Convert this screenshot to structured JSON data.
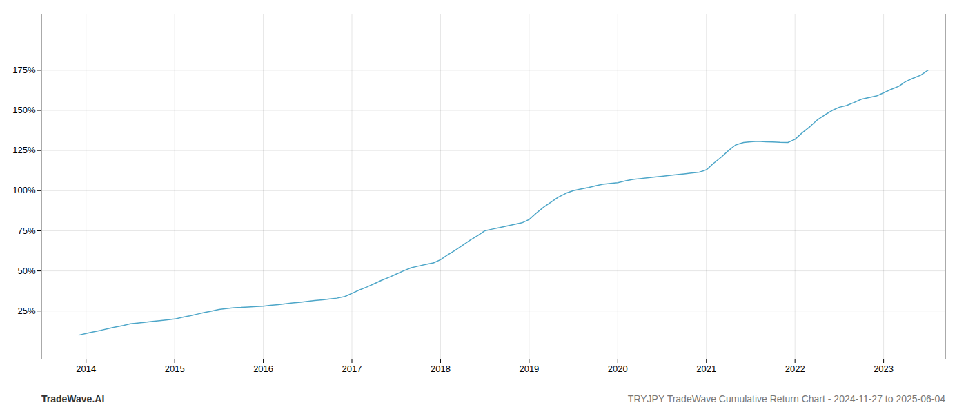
{
  "chart_data": {
    "type": "line",
    "title": "TRYJPY TradeWave Cumulative Return Chart - 2024-11-27 to 2025-06-04",
    "annotations": [
      "TradeWave.AI"
    ],
    "color": "#4da6c8",
    "grid": true,
    "xlim": [
      2013.5,
      2023.7
    ],
    "ylim": [
      -5,
      210
    ],
    "xticks": [
      2014,
      2015,
      2016,
      2017,
      2018,
      2019,
      2020,
      2021,
      2022,
      2023
    ],
    "yticks": [
      {
        "value": 25,
        "label": "25%"
      },
      {
        "value": 50,
        "label": "50%"
      },
      {
        "value": 75,
        "label": "75%"
      },
      {
        "value": 100,
        "label": "100%"
      },
      {
        "value": 125,
        "label": "125%"
      },
      {
        "value": 150,
        "label": "150%"
      },
      {
        "value": 175,
        "label": "175%"
      }
    ],
    "x": [
      2013.92,
      2014.0,
      2014.08,
      2014.17,
      2014.25,
      2014.33,
      2014.42,
      2014.5,
      2014.58,
      2014.67,
      2014.75,
      2014.83,
      2014.92,
      2015.0,
      2015.08,
      2015.17,
      2015.25,
      2015.33,
      2015.42,
      2015.5,
      2015.58,
      2015.67,
      2015.75,
      2015.83,
      2015.92,
      2016.0,
      2016.08,
      2016.17,
      2016.25,
      2016.33,
      2016.42,
      2016.5,
      2016.58,
      2016.67,
      2016.75,
      2016.83,
      2016.92,
      2017.0,
      2017.08,
      2017.17,
      2017.25,
      2017.33,
      2017.42,
      2017.5,
      2017.58,
      2017.67,
      2017.75,
      2017.83,
      2017.92,
      2018.0,
      2018.08,
      2018.17,
      2018.25,
      2018.33,
      2018.42,
      2018.5,
      2018.58,
      2018.67,
      2018.75,
      2018.83,
      2018.92,
      2019.0,
      2019.08,
      2019.17,
      2019.25,
      2019.33,
      2019.42,
      2019.5,
      2019.58,
      2019.67,
      2019.75,
      2019.83,
      2019.92,
      2020.0,
      2020.08,
      2020.17,
      2020.25,
      2020.33,
      2020.42,
      2020.5,
      2020.58,
      2020.67,
      2020.75,
      2020.83,
      2020.92,
      2021.0,
      2021.08,
      2021.17,
      2021.25,
      2021.33,
      2021.42,
      2021.5,
      2021.58,
      2021.67,
      2021.75,
      2021.83,
      2021.92,
      2022.0,
      2022.08,
      2022.17,
      2022.25,
      2022.33,
      2022.42,
      2022.5,
      2022.58,
      2022.67,
      2022.75,
      2022.83,
      2022.92,
      2023.0,
      2023.08,
      2023.17,
      2023.25,
      2023.33,
      2023.42,
      2023.5
    ],
    "values": [
      10,
      11,
      12,
      13,
      14,
      15,
      16,
      17,
      17.5,
      18,
      18.5,
      19,
      19.5,
      20,
      21,
      22,
      23,
      24,
      25,
      26,
      26.5,
      27,
      27.2,
      27.5,
      27.8,
      28,
      28.5,
      29,
      29.5,
      30,
      30.5,
      31,
      31.5,
      32,
      32.5,
      33,
      34,
      36,
      38,
      40,
      42,
      44,
      46,
      48,
      50,
      52,
      53,
      54,
      55,
      57,
      60,
      63,
      66,
      69,
      72,
      75,
      76,
      77,
      78,
      79,
      80,
      82,
      86,
      90,
      93,
      96,
      98.5,
      100,
      101,
      102,
      103,
      104,
      104.5,
      105,
      106,
      107,
      107.5,
      108,
      108.5,
      109,
      109.5,
      110,
      110.5,
      111,
      111.5,
      113,
      117,
      121,
      125,
      128.5,
      130,
      130.5,
      130.8,
      130.5,
      130.3,
      130.1,
      130,
      132,
      136,
      140,
      144,
      147,
      150,
      152,
      153,
      155,
      157,
      158,
      159,
      161,
      163,
      165,
      168,
      170,
      172,
      175
    ]
  }
}
